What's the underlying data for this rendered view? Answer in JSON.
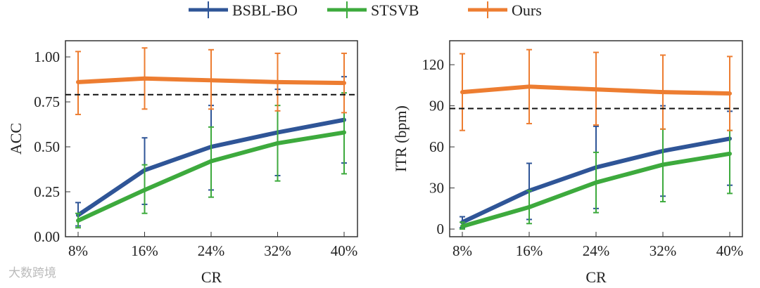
{
  "chart_data": [
    {
      "type": "line",
      "title": "",
      "xlabel": "CR",
      "ylabel": "ACC",
      "categories": [
        "8%",
        "16%",
        "24%",
        "32%",
        "40%"
      ],
      "ylim": [
        0,
        1.09
      ],
      "yticks": [
        "0.00",
        "0.25",
        "0.50",
        "0.75",
        "1.00"
      ],
      "ytick_values": [
        0,
        0.25,
        0.5,
        0.75,
        1.0
      ],
      "reference_line": 0.79,
      "series": [
        {
          "name": "BSBL-BO",
          "color": "#2f5597",
          "values": [
            0.12,
            0.37,
            0.5,
            0.58,
            0.65
          ],
          "err_low": [
            0.06,
            0.18,
            0.26,
            0.34,
            0.41
          ],
          "err_high": [
            0.19,
            0.55,
            0.73,
            0.82,
            0.89
          ]
        },
        {
          "name": "STSVB",
          "color": "#3daa3d",
          "values": [
            0.09,
            0.26,
            0.42,
            0.52,
            0.58
          ],
          "err_low": [
            0.05,
            0.13,
            0.22,
            0.31,
            0.35
          ],
          "err_high": [
            0.13,
            0.4,
            0.61,
            0.73,
            0.8
          ]
        },
        {
          "name": "Ours",
          "color": "#ed7d31",
          "values": [
            0.86,
            0.88,
            0.87,
            0.86,
            0.855
          ],
          "err_low": [
            0.68,
            0.71,
            0.71,
            0.7,
            0.69
          ],
          "err_high": [
            1.03,
            1.05,
            1.04,
            1.02,
            1.02
          ]
        }
      ]
    },
    {
      "type": "line",
      "title": "",
      "xlabel": "CR",
      "ylabel": "ITR (bpm)",
      "categories": [
        "8%",
        "16%",
        "24%",
        "32%",
        "40%"
      ],
      "ylim": [
        -5.6,
        137.5
      ],
      "yticks": [
        "0",
        "30",
        "60",
        "90",
        "120"
      ],
      "ytick_values": [
        0,
        30,
        60,
        90,
        120
      ],
      "reference_line": 88,
      "series": [
        {
          "name": "BSBL-BO",
          "color": "#2f5597",
          "values": [
            5,
            28,
            45,
            57,
            66
          ],
          "err_low": [
            1,
            7,
            15,
            24,
            32
          ],
          "err_high": [
            9,
            48,
            75,
            90,
            86
          ]
        },
        {
          "name": "STSVB",
          "color": "#3daa3d",
          "values": [
            2,
            16,
            34,
            47,
            55
          ],
          "err_low": [
            0,
            4,
            12,
            20,
            26
          ],
          "err_high": [
            5,
            28,
            56,
            73,
            72
          ]
        },
        {
          "name": "Ours",
          "color": "#ed7d31",
          "values": [
            100,
            104,
            102,
            100,
            99
          ],
          "err_low": [
            72,
            77,
            76,
            73,
            72
          ],
          "err_high": [
            128,
            131,
            129,
            127,
            126
          ]
        }
      ]
    }
  ],
  "legend": [
    "BSBL-BO",
    "STSVB",
    "Ours"
  ],
  "watermark": "大数跨境"
}
